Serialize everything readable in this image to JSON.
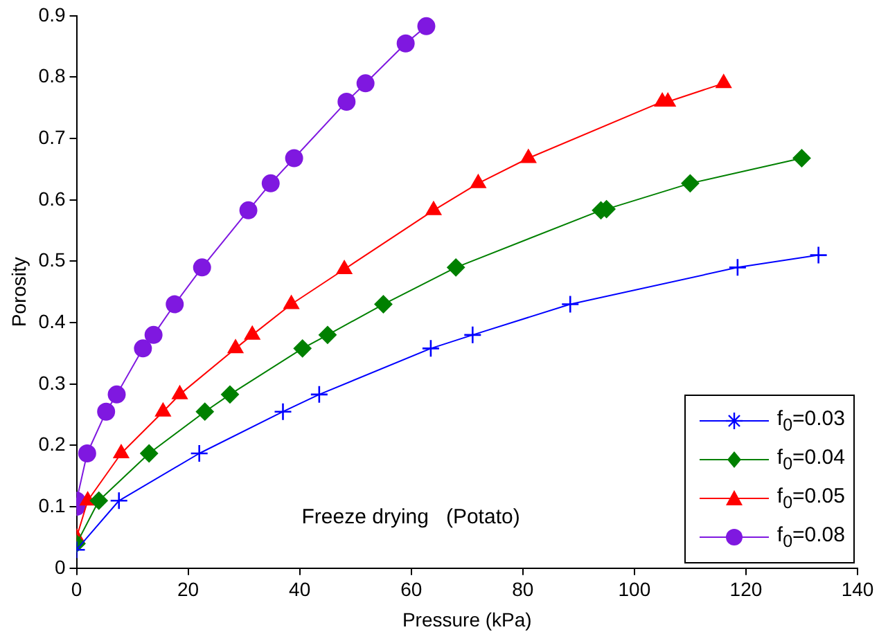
{
  "chart_data": {
    "type": "line",
    "xlabel": "Pressure (kPa)",
    "ylabel": "Porosity",
    "annotations": [
      "Freeze drying   (Potato)"
    ],
    "xlim": [
      0,
      140
    ],
    "xticks": [
      0,
      20,
      40,
      60,
      80,
      100,
      120,
      140
    ],
    "ylim": [
      0,
      0.9
    ],
    "yticks": [
      0,
      0.1,
      0.2,
      0.3,
      0.4,
      0.5,
      0.6,
      0.7,
      0.8,
      0.9
    ],
    "grid": false,
    "legend": "bottom right",
    "series": [
      {
        "name": "f$_{0}$=0.03",
        "color": "#0000ff",
        "marker": "cross",
        "x": [
          0,
          7.6,
          22,
          37,
          43.5,
          63.5,
          71,
          88.5,
          118.5,
          133
        ],
        "values": [
          0.03,
          0.11,
          0.187,
          0.255,
          0.283,
          0.358,
          0.38,
          0.43,
          0.49,
          0.51
        ]
      },
      {
        "name": "f$_{0}$=0.04",
        "color": "#008000",
        "marker": "diamond",
        "x": [
          0,
          4,
          13,
          23,
          27.5,
          40.5,
          45,
          55,
          68,
          94,
          95,
          110,
          130
        ],
        "values": [
          0.04,
          0.11,
          0.187,
          0.255,
          0.283,
          0.358,
          0.38,
          0.43,
          0.49,
          0.583,
          0.585,
          0.627,
          0.668
        ]
      },
      {
        "name": "f$_{0}$=0.05",
        "color": "#ff0000",
        "marker": "triangle",
        "x": [
          0,
          2,
          8,
          15.5,
          18.5,
          28.5,
          31.5,
          38.5,
          48,
          64,
          72,
          81,
          105,
          106,
          116
        ],
        "values": [
          0.05,
          0.11,
          0.187,
          0.255,
          0.283,
          0.358,
          0.38,
          0.43,
          0.487,
          0.583,
          0.627,
          0.668,
          0.76,
          0.76,
          0.79
        ]
      },
      {
        "name": "f$_{0}$=0.08",
        "color": "#7f18e0",
        "marker": "circle",
        "x": [
          0,
          0,
          1.9,
          5.3,
          7.2,
          11.9,
          13.8,
          17.6,
          22.5,
          30.8,
          34.8,
          39,
          48.4,
          51.8,
          59,
          62.7
        ],
        "values": [
          0.1,
          0.11,
          0.187,
          0.255,
          0.283,
          0.358,
          0.38,
          0.43,
          0.49,
          0.583,
          0.627,
          0.668,
          0.76,
          0.79,
          0.855,
          0.883
        ]
      }
    ]
  }
}
